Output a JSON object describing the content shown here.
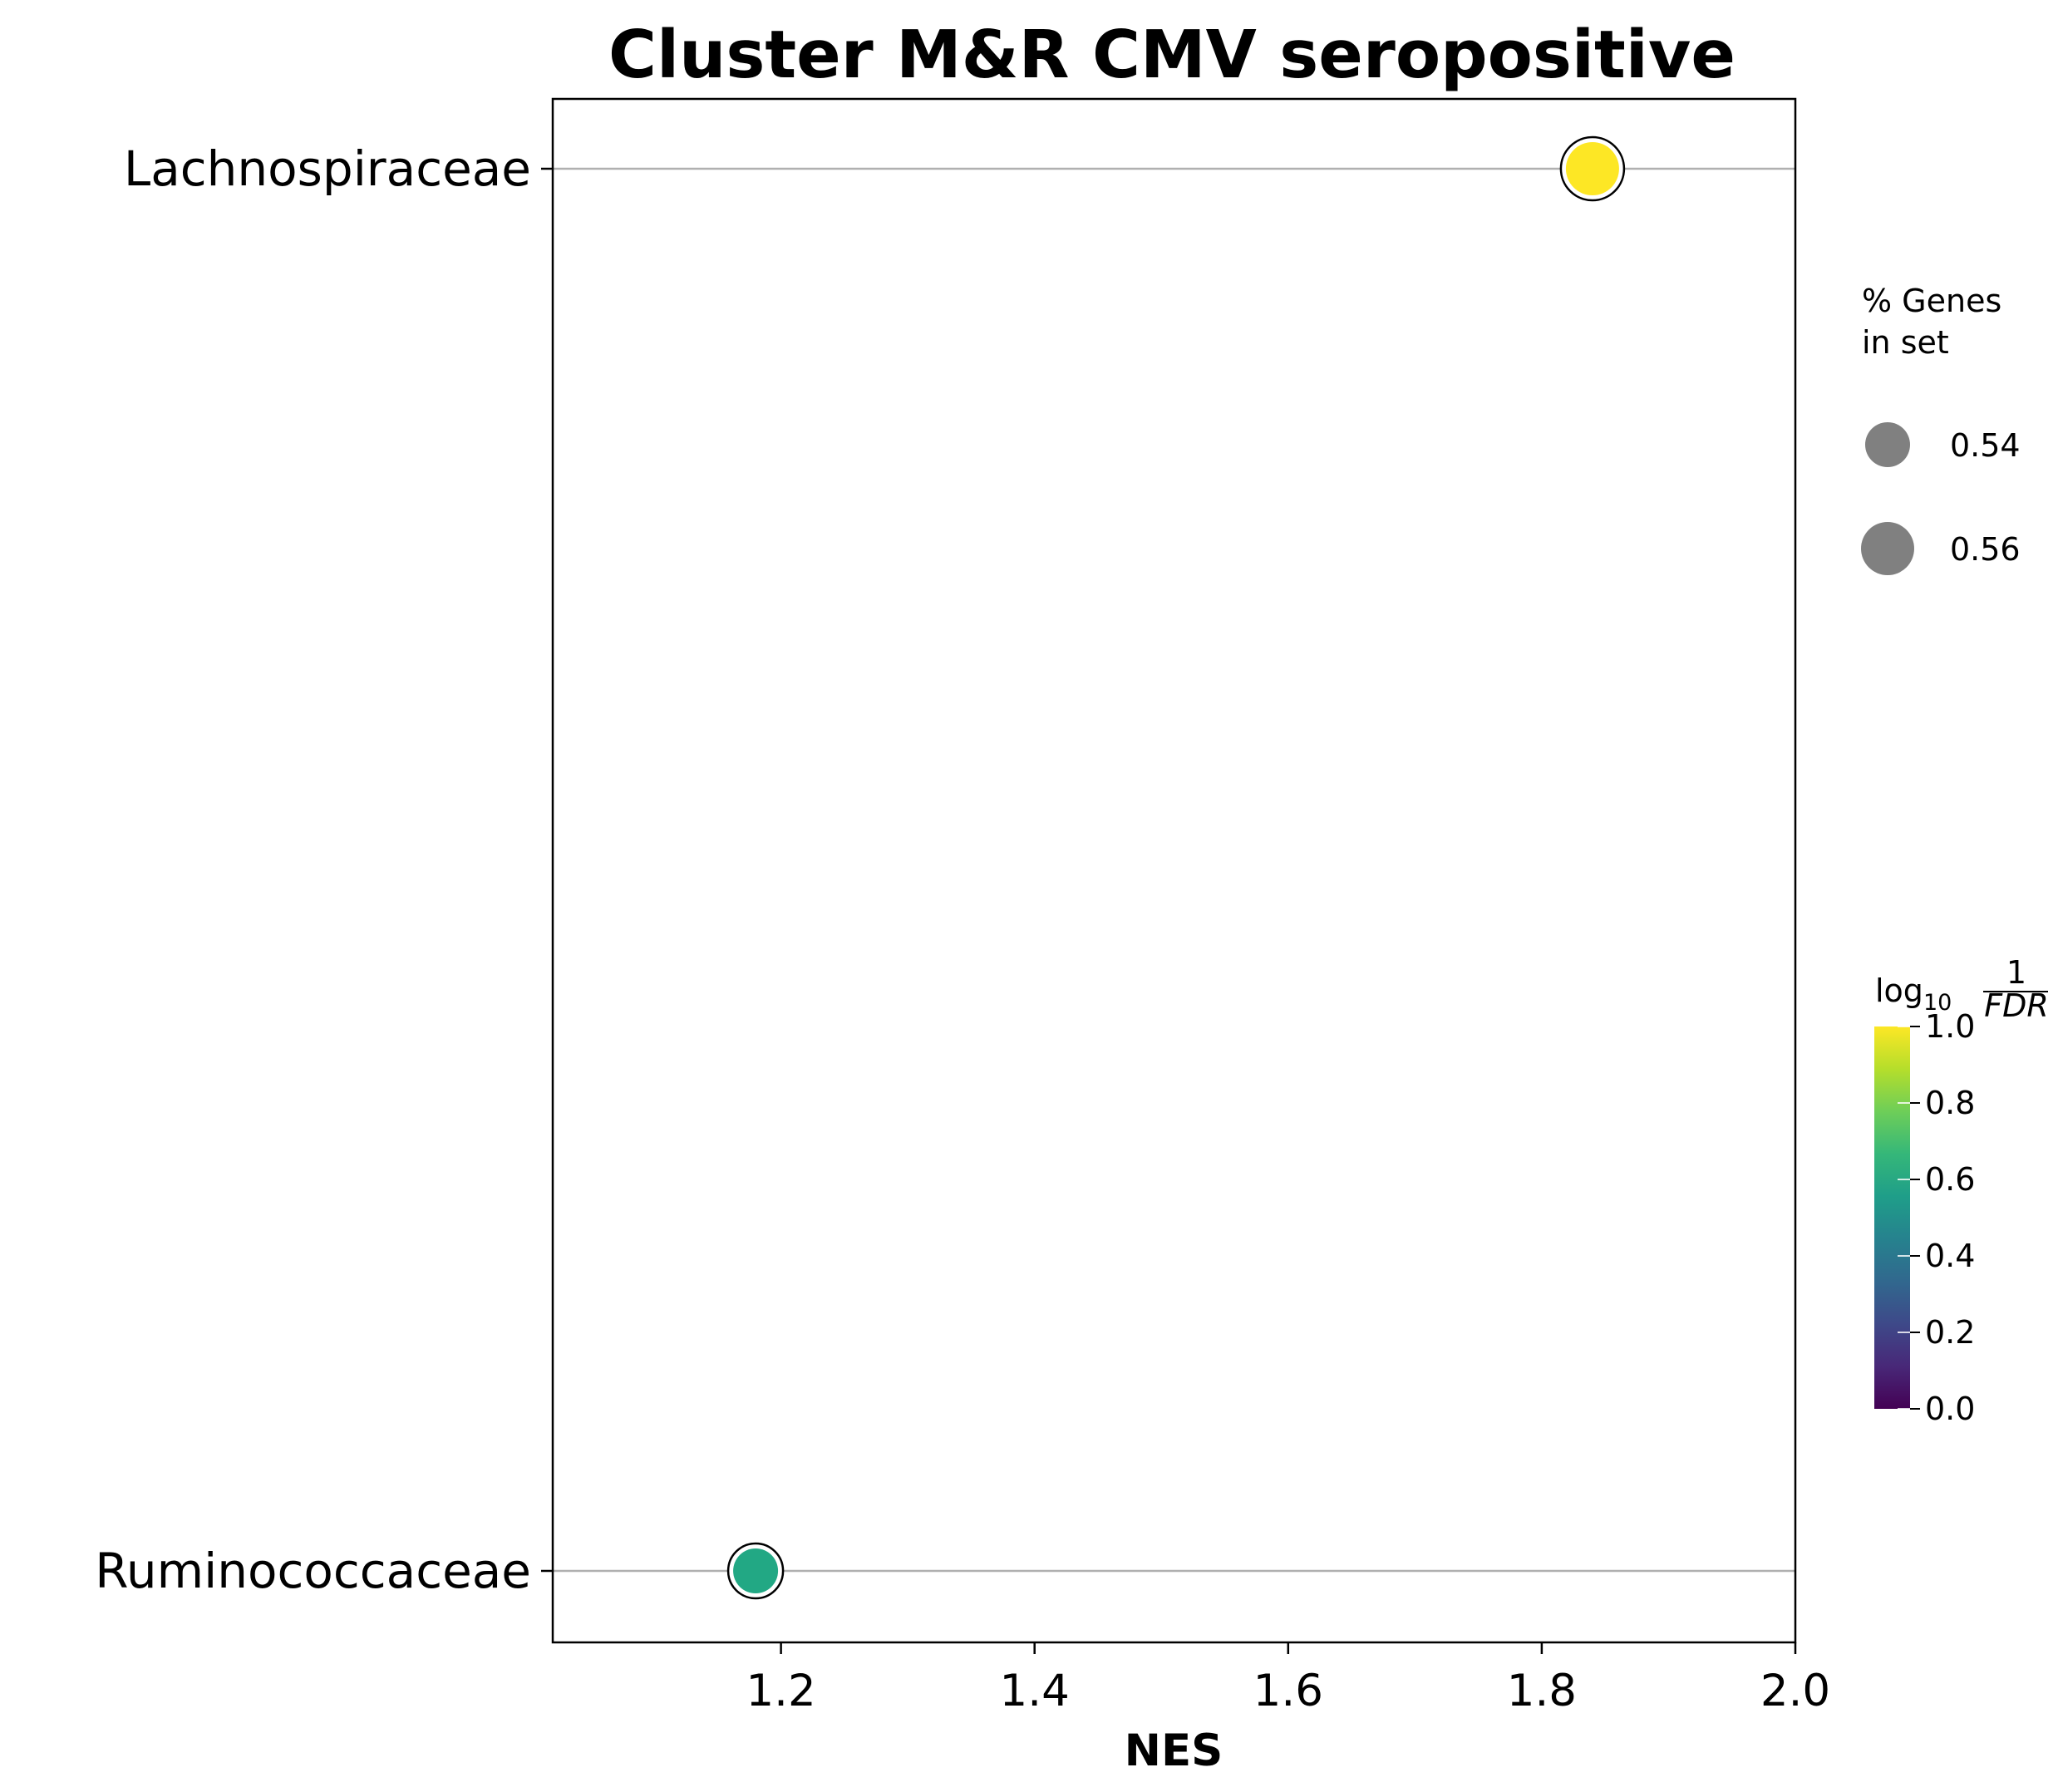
{
  "chart_data": {
    "type": "scatter",
    "title": "Cluster M&R CMV seropositive",
    "xlabel": "NES",
    "ylabel": "",
    "xlim": [
      1.02,
      2.0
    ],
    "x_ticks": [
      "1.2",
      "1.4",
      "1.6",
      "1.8",
      "2.0"
    ],
    "categories": [
      "Lachnospiraceae",
      "Ruminococcaceae"
    ],
    "grid": "horizontal lines at categories",
    "points": [
      {
        "category": "Lachnospiraceae",
        "x": 1.84,
        "pct_genes": 0.56,
        "log10_inv_fdr": 1.0,
        "color": "#fde725"
      },
      {
        "category": "Ruminococcaceae",
        "x": 1.18,
        "pct_genes": 0.54,
        "log10_inv_fdr": 0.6,
        "color": "#22a884"
      }
    ],
    "size_legend": {
      "title_lines": [
        "% Genes",
        "in set"
      ],
      "entries": [
        "0.54",
        "0.56"
      ],
      "marker_color": "#808080"
    },
    "colorbar": {
      "title_main": "log",
      "title_sub": "10",
      "title_num": "1",
      "title_den": "FDR",
      "ticks": [
        "0.0",
        "0.2",
        "0.4",
        "0.6",
        "0.8",
        "1.0"
      ],
      "range": [
        0.0,
        1.0
      ],
      "colormap": "viridis",
      "stops": [
        "#440154",
        "#482878",
        "#3e4989",
        "#31688e",
        "#26828e",
        "#1f9e89",
        "#35b779",
        "#6ece58",
        "#b5de2b",
        "#fde725"
      ]
    }
  }
}
